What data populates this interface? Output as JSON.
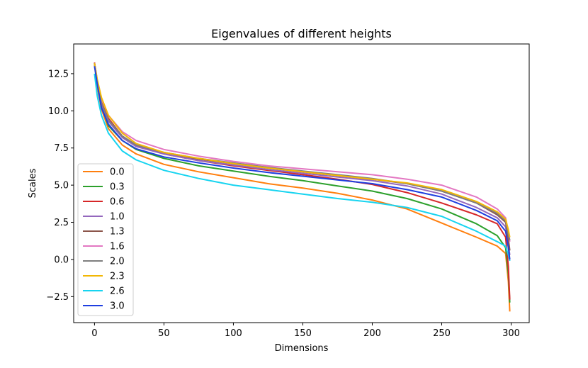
{
  "chart_data": {
    "type": "line",
    "title": "Eigenvalues of different heights",
    "xlabel": "Dimensions",
    "ylabel": "Scales",
    "xlim": [
      -15,
      313
    ],
    "ylim": [
      -4.25,
      14.5
    ],
    "xticks": [
      0,
      50,
      100,
      150,
      200,
      250,
      300
    ],
    "yticks": [
      -2.5,
      0.0,
      2.5,
      5.0,
      7.5,
      10.0,
      12.5
    ],
    "ytick_labels": [
      "−2.5",
      "0.0",
      "2.5",
      "5.0",
      "7.5",
      "10.0",
      "12.5"
    ],
    "legend_position": "center-left",
    "x": [
      0,
      2,
      5,
      10,
      20,
      30,
      50,
      75,
      100,
      125,
      150,
      175,
      200,
      225,
      250,
      275,
      290,
      296,
      298,
      299
    ],
    "series": [
      {
        "name": "0.0",
        "color": "#ff7f0e",
        "values": [
          13.2,
          11.6,
          10.1,
          8.8,
          7.7,
          7.1,
          6.4,
          5.9,
          5.5,
          5.1,
          4.8,
          4.45,
          4.0,
          3.4,
          2.45,
          1.5,
          0.9,
          0.4,
          -1.5,
          -3.5
        ]
      },
      {
        "name": "0.3",
        "color": "#2ca02c",
        "values": [
          13.2,
          11.8,
          10.3,
          9.0,
          8.0,
          7.4,
          6.8,
          6.3,
          5.95,
          5.6,
          5.3,
          4.95,
          4.6,
          4.1,
          3.4,
          2.4,
          1.6,
          0.8,
          -1.0,
          -2.9
        ]
      },
      {
        "name": "0.6",
        "color": "#d62728",
        "values": [
          13.25,
          12.0,
          10.6,
          9.5,
          8.3,
          7.7,
          7.1,
          6.65,
          6.3,
          6.0,
          5.7,
          5.4,
          5.05,
          4.5,
          3.8,
          3.0,
          2.4,
          1.5,
          -0.5,
          -2.7
        ]
      },
      {
        "name": "1.0",
        "color": "#9467bd",
        "values": [
          13.2,
          11.9,
          10.4,
          9.3,
          8.2,
          7.6,
          7.1,
          6.65,
          6.35,
          6.05,
          5.8,
          5.55,
          5.3,
          4.95,
          4.4,
          3.5,
          2.8,
          2.2,
          1.0,
          0.3
        ]
      },
      {
        "name": "1.3",
        "color": "#8c564b",
        "values": [
          13.2,
          11.9,
          10.5,
          9.4,
          8.3,
          7.7,
          7.2,
          6.75,
          6.45,
          6.15,
          5.9,
          5.65,
          5.4,
          5.1,
          4.6,
          3.8,
          3.0,
          2.5,
          1.4,
          0.6
        ]
      },
      {
        "name": "1.6",
        "color": "#e377c2",
        "values": [
          13.2,
          12.1,
          10.8,
          9.7,
          8.6,
          8.0,
          7.4,
          6.95,
          6.6,
          6.3,
          6.1,
          5.9,
          5.7,
          5.4,
          5.0,
          4.2,
          3.4,
          2.8,
          1.8,
          1.2
        ]
      },
      {
        "name": "2.0",
        "color": "#7f7f7f",
        "values": [
          13.2,
          11.9,
          10.5,
          9.4,
          8.3,
          7.7,
          7.2,
          6.8,
          6.5,
          6.2,
          5.95,
          5.7,
          5.45,
          5.1,
          4.6,
          3.8,
          3.1,
          2.6,
          1.7,
          1.3
        ]
      },
      {
        "name": "2.3",
        "color": "#f2b705",
        "values": [
          13.2,
          12.1,
          10.9,
          9.7,
          8.5,
          7.8,
          7.2,
          6.8,
          6.45,
          6.15,
          5.9,
          5.65,
          5.4,
          5.15,
          4.7,
          3.9,
          3.2,
          2.7,
          2.0,
          1.5
        ]
      },
      {
        "name": "2.6",
        "color": "#17d4f0",
        "values": [
          12.5,
          11.0,
          9.7,
          8.5,
          7.3,
          6.7,
          6.0,
          5.45,
          5.0,
          4.7,
          4.4,
          4.1,
          3.85,
          3.5,
          2.9,
          1.9,
          1.2,
          0.9,
          0.3,
          -0.1
        ]
      },
      {
        "name": "3.0",
        "color": "#1f3fe0",
        "values": [
          13.0,
          11.8,
          10.2,
          9.1,
          8.0,
          7.45,
          6.9,
          6.5,
          6.15,
          5.85,
          5.6,
          5.35,
          5.1,
          4.7,
          4.2,
          3.3,
          2.6,
          1.9,
          0.8,
          0.0
        ]
      }
    ]
  }
}
